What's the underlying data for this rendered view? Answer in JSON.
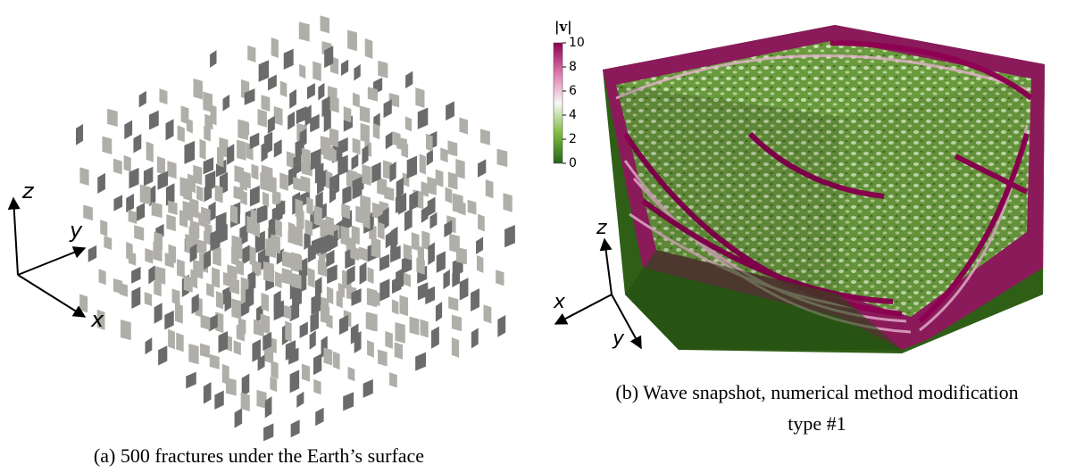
{
  "panel_a": {
    "axes": {
      "z": "z",
      "y": "y",
      "x": "x"
    },
    "caption": "(a) 500 fractures under the Earth’s surface"
  },
  "panel_b": {
    "colorbar": {
      "label": "|v|",
      "ticks": [
        10,
        8,
        6,
        4,
        2,
        0
      ]
    },
    "axes": {
      "z": "z",
      "x": "x",
      "y": "y"
    },
    "caption": [
      "(b) Wave snapshot, numerical method modification",
      "type #1"
    ]
  }
}
